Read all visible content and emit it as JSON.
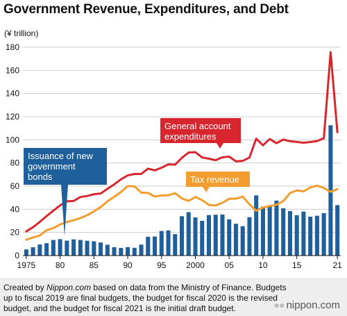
{
  "chart_data": {
    "type": "bar+line",
    "title": "Government Revenue, Expenditures, and Debt",
    "ylabel": "(¥ trillion)",
    "ylim": [
      0,
      180
    ],
    "yticks": [
      0,
      20,
      40,
      60,
      80,
      100,
      120,
      140,
      160,
      180
    ],
    "xlim": [
      1975,
      2021
    ],
    "xticks": [
      {
        "year": 1975,
        "label": "1975"
      },
      {
        "year": 1980,
        "label": "80"
      },
      {
        "year": 1985,
        "label": "85"
      },
      {
        "year": 1990,
        "label": "90"
      },
      {
        "year": 1995,
        "label": "95"
      },
      {
        "year": 2000,
        "label": "2000"
      },
      {
        "year": 2005,
        "label": "05"
      },
      {
        "year": 2010,
        "label": "10"
      },
      {
        "year": 2015,
        "label": "15"
      },
      {
        "year": 2021,
        "label": "21"
      }
    ],
    "grid": true,
    "years": [
      1975,
      1976,
      1977,
      1978,
      1979,
      1980,
      1981,
      1982,
      1983,
      1984,
      1985,
      1986,
      1987,
      1988,
      1989,
      1990,
      1991,
      1992,
      1993,
      1994,
      1995,
      1996,
      1997,
      1998,
      1999,
      2000,
      2001,
      2002,
      2003,
      2004,
      2005,
      2006,
      2007,
      2008,
      2009,
      2010,
      2011,
      2012,
      2013,
      2014,
      2015,
      2016,
      2017,
      2018,
      2019,
      2020,
      2021
    ],
    "series": [
      {
        "name": "General account expenditures",
        "type": "line",
        "color": "#d8262e",
        "values": [
          20.9,
          24.5,
          29.1,
          34.1,
          38.8,
          43.4,
          46.9,
          47.2,
          50.6,
          51.5,
          53.0,
          53.6,
          57.7,
          61.5,
          65.9,
          69.3,
          70.5,
          70.5,
          75.1,
          73.6,
          75.9,
          78.8,
          78.5,
          84.4,
          89.0,
          89.3,
          84.8,
          83.7,
          82.4,
          84.9,
          85.5,
          81.4,
          81.8,
          84.7,
          101.0,
          95.3,
          100.7,
          97.1,
          100.2,
          98.8,
          98.2,
          97.5,
          98.1,
          98.9,
          101.4,
          175.7,
          106.6
        ]
      },
      {
        "name": "Tax revenue",
        "type": "line",
        "color": "#f39c2f",
        "values": [
          13.7,
          15.7,
          17.3,
          21.9,
          23.7,
          26.9,
          29.0,
          30.5,
          32.4,
          34.9,
          38.2,
          41.9,
          46.8,
          50.8,
          54.9,
          60.1,
          59.8,
          54.4,
          54.1,
          51.0,
          51.9,
          52.1,
          53.9,
          49.4,
          47.2,
          50.7,
          47.9,
          43.8,
          43.3,
          45.6,
          49.1,
          49.1,
          51.0,
          44.3,
          38.7,
          41.5,
          42.8,
          43.9,
          47.0,
          54.0,
          56.3,
          55.5,
          58.8,
          60.4,
          58.4,
          55.1,
          57.4
        ]
      },
      {
        "name": "Issuance of new government bonds",
        "type": "bar",
        "color": "#1f5f9c",
        "values": [
          5.3,
          7.2,
          9.6,
          10.7,
          13.5,
          14.2,
          12.9,
          14.0,
          13.5,
          12.8,
          12.3,
          11.3,
          9.4,
          7.2,
          6.6,
          7.3,
          6.7,
          9.5,
          16.2,
          16.5,
          21.2,
          21.7,
          18.5,
          34.0,
          37.5,
          33.0,
          30.0,
          35.0,
          35.3,
          35.5,
          31.3,
          27.5,
          25.4,
          33.2,
          52.0,
          42.3,
          42.8,
          47.5,
          40.9,
          38.5,
          34.9,
          38.0,
          33.6,
          34.4,
          36.6,
          112.6,
          43.6
        ]
      }
    ]
  },
  "labels": {
    "expenditures": [
      "General account",
      "expenditures"
    ],
    "tax": [
      "Tax revenue"
    ],
    "bonds": [
      "Issuance of new",
      "government",
      "bonds"
    ]
  },
  "colors": {
    "expenditures": "#d8262e",
    "tax": "#f39c2f",
    "bonds": "#1f5f9c",
    "grid": "#cccccc",
    "footer_bg": "#eeeeee"
  },
  "footer": {
    "note_prefix": "Created by ",
    "note_source": "Nippon.com",
    "note_suffix": " based on data from the Ministry of Finance. Budgets up to fiscal 2019 are final budgets, the budget for fiscal 2020 is the revised budget, and the budget for fiscal 2021 is the initial draft budget.",
    "logo_text": "nippon.com",
    "logo_icon": "dots-icon"
  }
}
